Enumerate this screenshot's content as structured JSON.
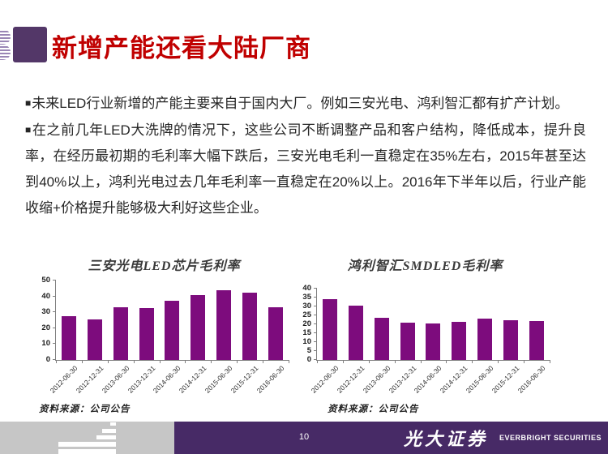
{
  "header": {
    "title": "新增产能还看大陆厂商",
    "title_color": "#c00000",
    "logo_purple": "#533768"
  },
  "body": {
    "bullet_marker": "■",
    "paragraphs": [
      "未来LED行业新增的产能主要来自于国内大厂。例如三安光电、鸿利智汇都有扩产计划。",
      "在之前几年LED大洗牌的情况下，这些公司不断调整产品和客户结构，降低成本，提升良率，在经历最初期的毛利率大幅下跌后，三安光电毛利一直稳定在35%左右，2015年甚至达到40%以上，鸿利光电过去几年毛利率一直稳定在20%以上。2016年下半年以后，行业产能收缩+价格提升能够极大利好这些企业。"
    ]
  },
  "chart_data": [
    {
      "type": "bar",
      "title": "三安光电LED芯片毛利率",
      "categories": [
        "2012-06-30",
        "2012-12-31",
        "2013-06-30",
        "2013-12-31",
        "2014-06-30",
        "2014-12-31",
        "2015-06-30",
        "2015-12-31",
        "2016-06-30"
      ],
      "values": [
        27.5,
        25.5,
        33,
        32.5,
        37,
        41,
        44,
        42.5,
        33
      ],
      "xlabel": "",
      "ylabel": "",
      "ylim": [
        0,
        50
      ],
      "ytick_step": 10,
      "grid": false,
      "legend": "none",
      "bar_color": "#7d0c7d",
      "source": "资料来源：公司公告"
    },
    {
      "type": "bar",
      "title": "鸿利智汇SMDLED毛利率",
      "categories": [
        "2012-06-30",
        "2012-12-31",
        "2013-06-30",
        "2013-12-31",
        "2014-06-30",
        "2014-12-31",
        "2015-06-30",
        "2015-12-31",
        "2016-06-30"
      ],
      "values": [
        34,
        30.5,
        23.5,
        21,
        20.5,
        21.5,
        23,
        22.5,
        22
      ],
      "xlabel": "",
      "ylabel": "",
      "ylim": [
        0,
        40
      ],
      "ytick_step": 5,
      "grid": false,
      "legend": "none",
      "bar_color": "#7d0c7d",
      "source": "资料来源：公司公告"
    }
  ],
  "footer": {
    "page_number": "10",
    "brand_cn": "光大证券",
    "brand_en": "EVERBRIGHT SECURITIES",
    "bar_color": "#472a66"
  }
}
